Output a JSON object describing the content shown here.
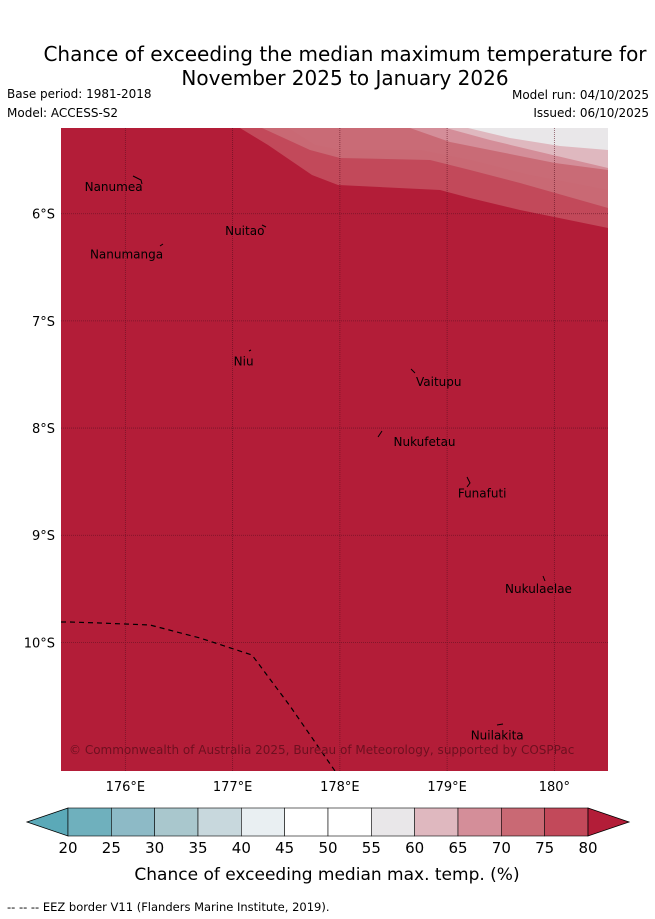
{
  "title": {
    "line1": "Chance of exceeding the median maximum temperature for",
    "line2": "November 2025 to January 2026"
  },
  "meta": {
    "base_period": "Base period: 1981-2018",
    "model": "Model: ACCESS-S2",
    "model_run": "Model run: 04/10/2025",
    "issued": "Issued: 06/10/2025"
  },
  "map": {
    "lat_ticks": [
      "6°S",
      "7°S",
      "8°S",
      "9°S",
      "10°S"
    ],
    "lon_ticks": [
      "176°E",
      "177°E",
      "178°E",
      "179°E",
      "180°"
    ],
    "lat_values": [
      -6,
      -7,
      -8,
      -9,
      -10
    ],
    "lon_values": [
      176,
      177,
      178,
      179,
      180
    ],
    "extent": {
      "lon_min": 175.4,
      "lon_max": 180.5,
      "lat_min": -11.2,
      "lat_max": -5.2
    },
    "places": [
      {
        "name": "Nanumea",
        "lon": 175.62,
        "lat": -5.75
      },
      {
        "name": "Nuitao",
        "lon": 176.93,
        "lat": -6.16
      },
      {
        "name": "Nanumanga",
        "lon": 175.67,
        "lat": -6.38
      },
      {
        "name": "Niu",
        "lon": 177.01,
        "lat": -7.38
      },
      {
        "name": "Vaitupu",
        "lon": 178.71,
        "lat": -7.57
      },
      {
        "name": "Nukufetau",
        "lon": 178.5,
        "lat": -8.13
      },
      {
        "name": "Funafuti",
        "lon": 179.1,
        "lat": -8.61
      },
      {
        "name": "Nukulaelae",
        "lon": 179.54,
        "lat": -9.5
      },
      {
        "name": "Nuilakita",
        "lon": 179.22,
        "lat": -10.87
      }
    ],
    "copyright": "© Commonwealth of Australia 2025, Bureau of Meteorology, supported by COSPPac",
    "base_color": "#b31d38"
  },
  "colorbar": {
    "ticks": [
      "20",
      "25",
      "30",
      "35",
      "40",
      "45",
      "50",
      "55",
      "60",
      "65",
      "70",
      "75",
      "80"
    ],
    "colors": [
      "#5ba9b8",
      "#6fb0bd",
      "#8dbac6",
      "#a9c7cd",
      "#c8d8dd",
      "#e9eff2",
      "#ffffff",
      "#ffffff",
      "#e9e7e9",
      "#dfb8bf",
      "#d48e99",
      "#c96974",
      "#c2495a",
      "#b31d38"
    ],
    "label": "Chance of exceeding median max. temp. (%)"
  },
  "footnote": "-- -- -- EEZ border V11 (Flanders Marine Institute, 2019)."
}
